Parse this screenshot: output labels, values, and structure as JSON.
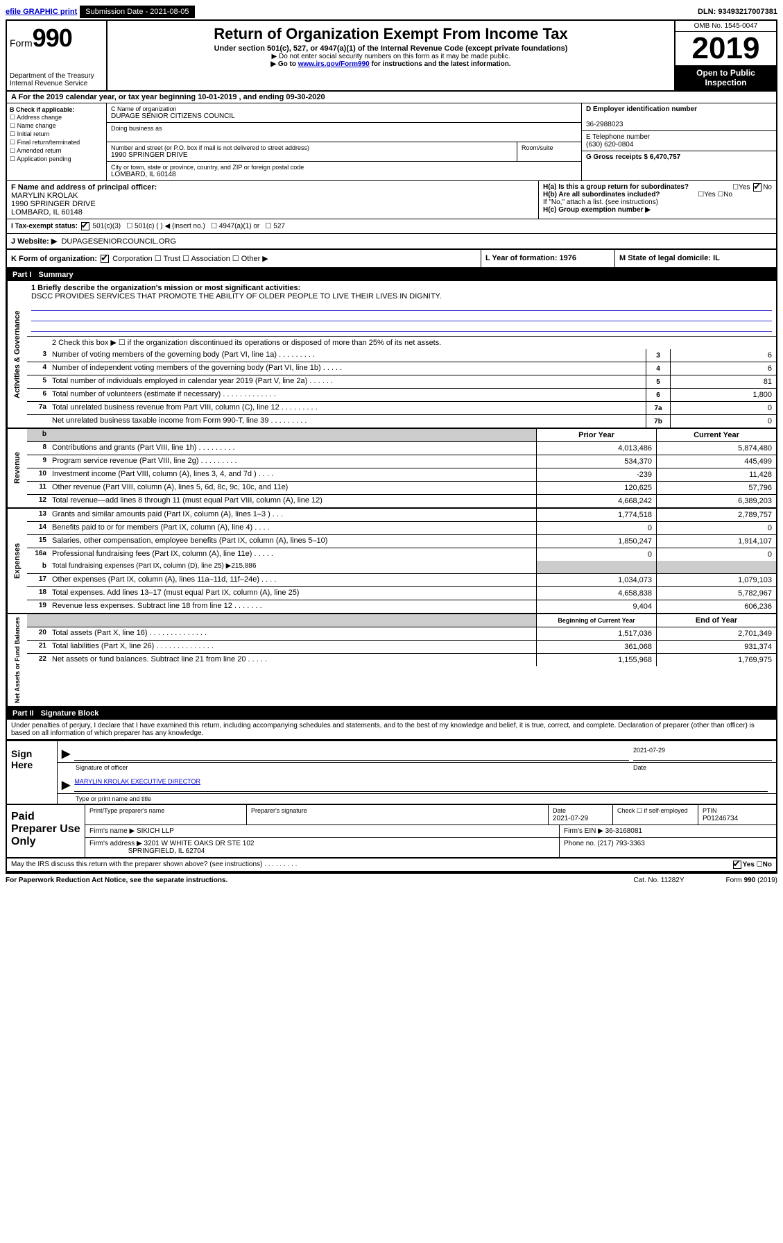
{
  "topbar": {
    "efile": "efile GRAPHIC print",
    "submission_label": "Submission Date - 2021-08-05",
    "dln": "DLN: 93493217007381"
  },
  "header": {
    "form_label": "Form",
    "form_number": "990",
    "dept1": "Department of the Treasury",
    "dept2": "Internal Revenue Service",
    "title": "Return of Organization Exempt From Income Tax",
    "subtitle": "Under section 501(c), 527, or 4947(a)(1) of the Internal Revenue Code (except private foundations)",
    "note1": "▶ Do not enter social security numbers on this form as it may be made public.",
    "note2_pre": "▶ Go to ",
    "note2_link": "www.irs.gov/Form990",
    "note2_post": " for instructions and the latest information.",
    "omb": "OMB No. 1545-0047",
    "year": "2019",
    "open": "Open to Public Inspection"
  },
  "rowA": {
    "text": "A For the 2019 calendar year, or tax year beginning 10-01-2019  , and ending 09-30-2020"
  },
  "colB": {
    "title": "B Check if applicable:",
    "opts": [
      "Address change",
      "Name change",
      "Initial return",
      "Final return/terminated",
      "Amended return",
      "Application pending"
    ]
  },
  "colC": {
    "name_label": "C Name of organization",
    "name": "DUPAGE SENIOR CITIZENS COUNCIL",
    "dba_label": "Doing business as",
    "addr_label": "Number and street (or P.O. box if mail is not delivered to street address)",
    "room_label": "Room/suite",
    "addr": "1990 SPRINGER DRIVE",
    "city_label": "City or town, state or province, country, and ZIP or foreign postal code",
    "city": "LOMBARD, IL  60148"
  },
  "colD": {
    "ein_label": "D Employer identification number",
    "ein": "36-2988023",
    "phone_label": "E Telephone number",
    "phone": "(630) 620-0804",
    "gross_label": "G Gross receipts $ 6,470,757"
  },
  "rowF": {
    "label": "F  Name and address of principal officer:",
    "name": "MARYLIN KROLAK",
    "addr1": "1990 SPRINGER DRIVE",
    "addr2": "LOMBARD, IL  60148"
  },
  "rowH": {
    "ha": "H(a)  Is this a group return for subordinates?",
    "hb": "H(b)  Are all subordinates included?",
    "hb_note": "If \"No,\" attach a list. (see instructions)",
    "hc": "H(c)  Group exemption number ▶",
    "yes": "Yes",
    "no": "No"
  },
  "rowI": {
    "label": "I   Tax-exempt status:",
    "opt1": "501(c)(3)",
    "opt2": "501(c) (   ) ◀ (insert no.)",
    "opt3": "4947(a)(1) or",
    "opt4": "527"
  },
  "rowJ": {
    "label": "J   Website: ▶",
    "value": "DUPAGESENIORCOUNCIL.ORG"
  },
  "rowK": {
    "k": "K Form of organization:",
    "corp": "Corporation",
    "trust": "Trust",
    "assoc": "Association",
    "other": "Other ▶",
    "l": "L Year of formation: 1976",
    "m": "M State of legal domicile: IL"
  },
  "part1": {
    "label": "Part I",
    "title": "Summary"
  },
  "governance": {
    "side": "Activities & Governance",
    "line1_label": "1  Briefly describe the organization's mission or most significant activities:",
    "line1_text": "DSCC PROVIDES SERVICES THAT PROMOTE THE ABILITY OF OLDER PEOPLE TO LIVE THEIR LIVES IN DIGNITY.",
    "line2": "2   Check this box ▶ ☐  if the organization discontinued its operations or disposed of more than 25% of its net assets.",
    "lines": [
      {
        "n": "3",
        "t": "Number of voting members of the governing body (Part VI, line 1a)  .    .    .    .    .    .    .    .    .",
        "box": "3",
        "v": "6"
      },
      {
        "n": "4",
        "t": "Number of independent voting members of the governing body (Part VI, line 1b)  .    .    .    .    .",
        "box": "4",
        "v": "6"
      },
      {
        "n": "5",
        "t": "Total number of individuals employed in calendar year 2019 (Part V, line 2a)  .    .    .    .    .    .",
        "box": "5",
        "v": "81"
      },
      {
        "n": "6",
        "t": "Total number of volunteers (estimate if necessary)  .    .    .    .    .    .    .    .    .    .    .    .    .",
        "box": "6",
        "v": "1,800"
      },
      {
        "n": "7a",
        "t": "Total unrelated business revenue from Part VIII, column (C), line 12  .    .    .    .    .    .    .    .    .",
        "box": "7a",
        "v": "0"
      },
      {
        "n": "",
        "t": "Net unrelated business taxable income from Form 990-T, line 39  .    .    .    .    .    .    .    .    .",
        "box": "7b",
        "v": "0"
      }
    ]
  },
  "revenue": {
    "side": "Revenue",
    "header_prior": "Prior Year",
    "header_current": "Current Year",
    "lines": [
      {
        "n": "8",
        "t": "Contributions and grants (Part VIII, line 1h)  .    .    .    .    .    .    .    .    .",
        "p": "4,013,486",
        "c": "5,874,480"
      },
      {
        "n": "9",
        "t": "Program service revenue (Part VIII, line 2g)  .    .    .    .    .    .    .    .    .",
        "p": "534,370",
        "c": "445,499"
      },
      {
        "n": "10",
        "t": "Investment income (Part VIII, column (A), lines 3, 4, and 7d )  .    .    .    .",
        "p": "-239",
        "c": "11,428"
      },
      {
        "n": "11",
        "t": "Other revenue (Part VIII, column (A), lines 5, 6d, 8c, 9c, 10c, and 11e)",
        "p": "120,625",
        "c": "57,796"
      },
      {
        "n": "12",
        "t": "Total revenue—add lines 8 through 11 (must equal Part VIII, column (A), line 12)",
        "p": "4,668,242",
        "c": "6,389,203"
      }
    ]
  },
  "expenses": {
    "side": "Expenses",
    "lines": [
      {
        "n": "13",
        "t": "Grants and similar amounts paid (Part IX, column (A), lines 1–3 )  .    .    .",
        "p": "1,774,518",
        "c": "2,789,757"
      },
      {
        "n": "14",
        "t": "Benefits paid to or for members (Part IX, column (A), line 4)  .    .    .    .",
        "p": "0",
        "c": "0"
      },
      {
        "n": "15",
        "t": "Salaries, other compensation, employee benefits (Part IX, column (A), lines 5–10)",
        "p": "1,850,247",
        "c": "1,914,107"
      },
      {
        "n": "16a",
        "t": "Professional fundraising fees (Part IX, column (A), line 11e)  .    .    .    .    .",
        "p": "0",
        "c": "0"
      }
    ],
    "line_b": {
      "n": "b",
      "t": "Total fundraising expenses (Part IX, column (D), line 25) ▶215,886"
    },
    "lines2": [
      {
        "n": "17",
        "t": "Other expenses (Part IX, column (A), lines 11a–11d, 11f–24e)  .    .    .    .",
        "p": "1,034,073",
        "c": "1,079,103"
      },
      {
        "n": "18",
        "t": "Total expenses. Add lines 13–17 (must equal Part IX, column (A), line 25)",
        "p": "4,658,838",
        "c": "5,782,967"
      },
      {
        "n": "19",
        "t": "Revenue less expenses. Subtract line 18 from line 12  .    .    .    .    .    .    .",
        "p": "9,404",
        "c": "606,236"
      }
    ]
  },
  "netassets": {
    "side": "Net Assets or Fund Balances",
    "header_begin": "Beginning of Current Year",
    "header_end": "End of Year",
    "lines": [
      {
        "n": "20",
        "t": "Total assets (Part X, line 16)  .    .    .    .    .    .    .    .    .    .    .    .    .    .",
        "p": "1,517,036",
        "c": "2,701,349"
      },
      {
        "n": "21",
        "t": "Total liabilities (Part X, line 26)  .    .    .    .    .    .    .    .    .    .    .    .    .    .",
        "p": "361,068",
        "c": "931,374"
      },
      {
        "n": "22",
        "t": "Net assets or fund balances. Subtract line 21 from line 20  .    .    .    .    .",
        "p": "1,155,968",
        "c": "1,769,975"
      }
    ]
  },
  "part2": {
    "label": "Part II",
    "title": "Signature Block"
  },
  "declaration": "Under penalties of perjury, I declare that I have examined this return, including accompanying schedules and statements, and to the best of my knowledge and belief, it is true, correct, and complete. Declaration of preparer (other than officer) is based on all information of which preparer has any knowledge.",
  "sign": {
    "left": "Sign Here",
    "sig_label": "Signature of officer",
    "date": "2021-07-29",
    "date_label": "Date",
    "name": "MARYLIN KROLAK  EXECUTIVE DIRECTOR",
    "name_label": "Type or print name and title"
  },
  "paid": {
    "left": "Paid Preparer Use Only",
    "h1": "Print/Type preparer's name",
    "h2": "Preparer's signature",
    "h3": "Date",
    "date": "2021-07-29",
    "h4": "Check ☐ if self-employed",
    "h5": "PTIN",
    "ptin": "P01246734",
    "firm_label": "Firm's name    ▶",
    "firm": "SIKICH LLP",
    "ein_label": "Firm's EIN ▶ 36-3168081",
    "addr_label": "Firm's address ▶",
    "addr1": "3201 W WHITE OAKS DR STE 102",
    "addr2": "SPRINGFIELD, IL  62704",
    "phone_label": "Phone no. (217) 793-3363"
  },
  "footer": {
    "discuss": "May the IRS discuss this return with the preparer shown above? (see instructions)   .    .    .    .    .    .    .    .    .",
    "yes": "Yes",
    "no": "No",
    "pra": "For Paperwork Reduction Act Notice, see the separate instructions.",
    "cat": "Cat. No. 11282Y",
    "form": "Form 990 (2019)"
  }
}
